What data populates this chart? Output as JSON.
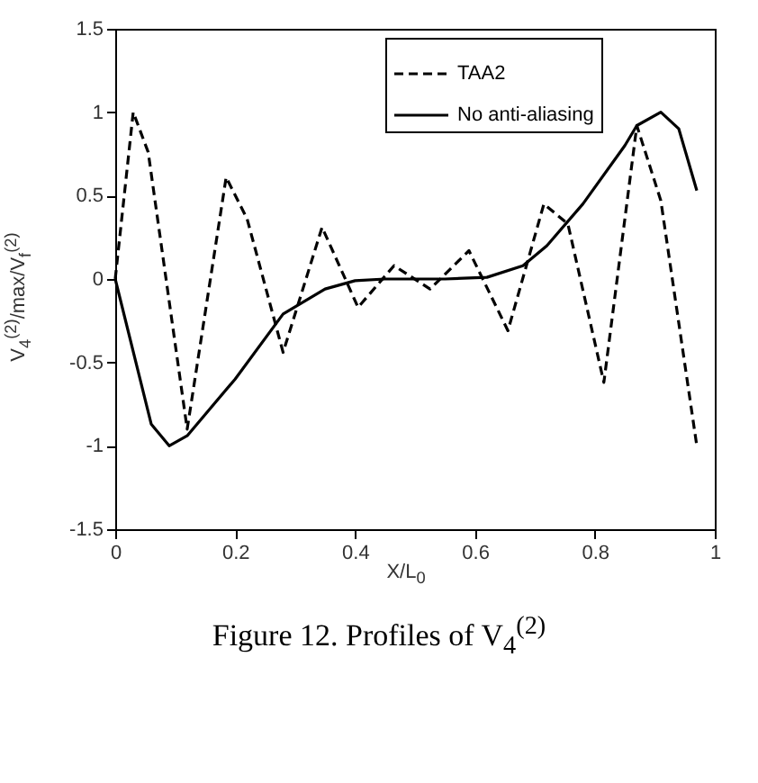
{
  "chart_data": {
    "type": "line",
    "xlabel": "X/L$_{0}$",
    "ylabel": "V$_{4}$$^{(2)}$/max/V$_{f}$$^{(2)}$",
    "annotations": [
      "Figure 12. Profiles of V$_{4}$$^{(2)}$"
    ],
    "xlim": [
      0,
      1
    ],
    "ylim": [
      -1.5,
      1.5
    ],
    "xticks": [
      0,
      0.2,
      0.4,
      0.6,
      0.8,
      1
    ],
    "yticks": [
      -1.5,
      -1,
      -0.5,
      0,
      0.5,
      1,
      1.5
    ],
    "grid": false,
    "legend": "top",
    "marker": "none",
    "series": [
      {
        "name": "TAA2",
        "color": "#000000",
        "line_style": "dashed",
        "x": [
          0,
          0.03,
          0.055,
          0.12,
          0.185,
          0.22,
          0.28,
          0.345,
          0.405,
          0.465,
          0.525,
          0.59,
          0.655,
          0.715,
          0.755,
          0.815,
          0.87,
          0.91,
          0.97
        ],
        "values": [
          0,
          1,
          0.76,
          -0.9,
          0.61,
          0.36,
          -0.44,
          0.31,
          -0.17,
          0.08,
          -0.06,
          0.17,
          -0.31,
          0.45,
          0.33,
          -0.62,
          0.92,
          0.47,
          -1
        ]
      },
      {
        "name": "No anti-aliasing",
        "color": "#000000",
        "line_style": "solid",
        "x": [
          0,
          0.06,
          0.09,
          0.12,
          0.2,
          0.28,
          0.35,
          0.4,
          0.45,
          0.55,
          0.62,
          0.68,
          0.72,
          0.78,
          0.85,
          0.87,
          0.91,
          0.94,
          0.97
        ],
        "values": [
          0,
          -0.87,
          -1,
          -0.94,
          -0.6,
          -0.21,
          -0.06,
          -0.01,
          0,
          0,
          0.01,
          0.08,
          0.2,
          0.45,
          0.8,
          0.92,
          1,
          0.9,
          0.53
        ]
      }
    ]
  }
}
